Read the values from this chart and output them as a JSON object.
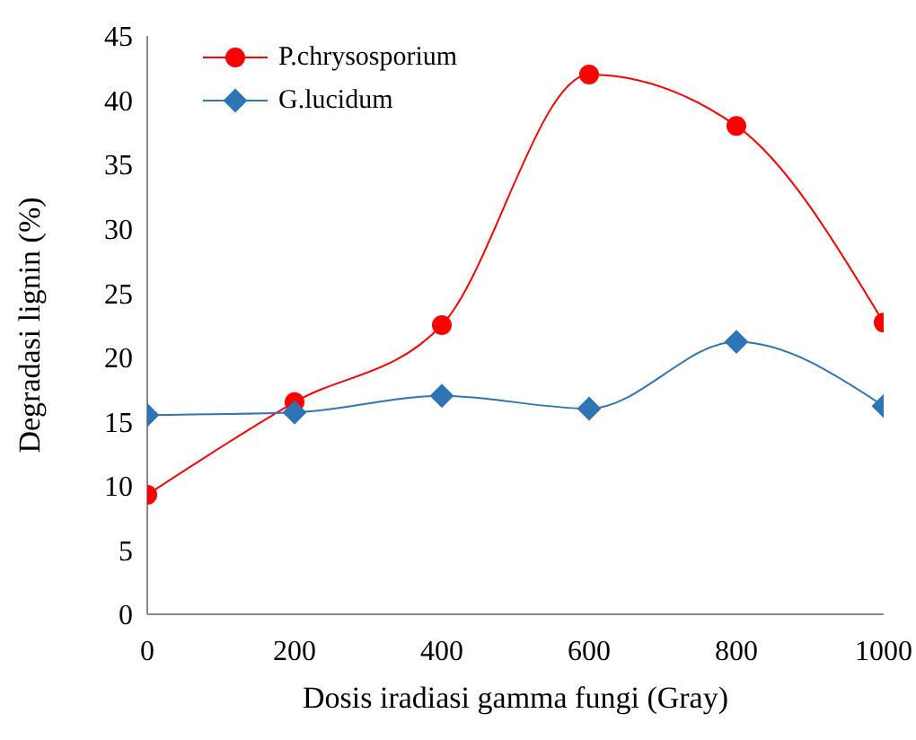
{
  "chart_data": {
    "type": "line",
    "xlabel": "Dosis iradiasi gamma fungi (Gray)",
    "ylabel": "Degradasi lignin (%)",
    "x": [
      0,
      200,
      400,
      600,
      800,
      1000
    ],
    "series": [
      {
        "name": "P.chrysosporium",
        "color": "#ff0000",
        "marker": "circle",
        "values": [
          9.3,
          16.5,
          22.5,
          42,
          38,
          22.7
        ]
      },
      {
        "name": "G.lucidum",
        "color": "#2e75b6",
        "marker": "diamond",
        "values": [
          15.5,
          15.7,
          17,
          16,
          21.2,
          16.2
        ]
      }
    ],
    "xlim": [
      0,
      1000
    ],
    "xticks": [
      0,
      200,
      400,
      600,
      800,
      1000
    ],
    "ylim": [
      0,
      45
    ],
    "yticks": [
      0,
      5,
      10,
      15,
      20,
      25,
      30,
      35,
      40,
      45
    ],
    "grid": false,
    "legend": "top left"
  }
}
